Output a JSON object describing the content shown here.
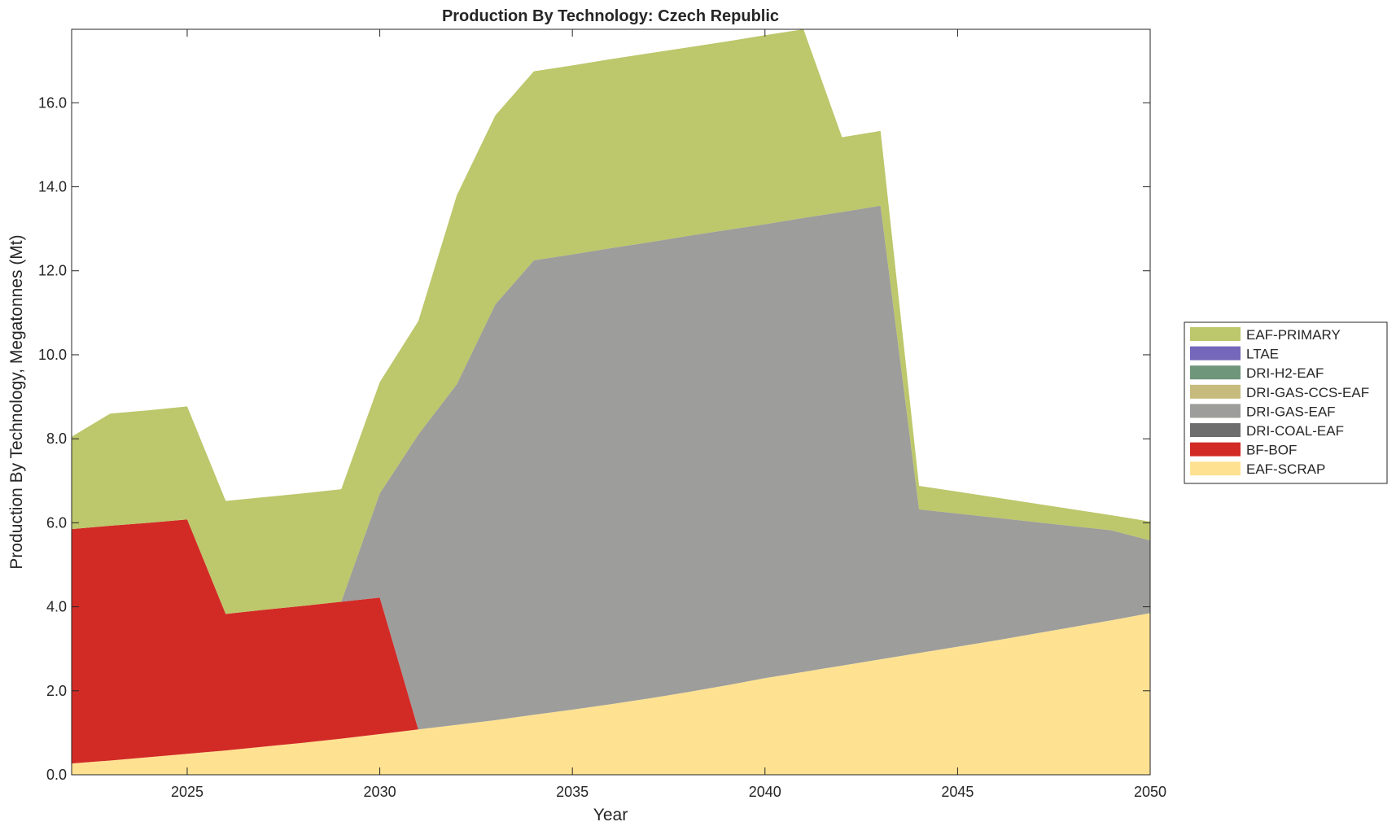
{
  "chart_data": {
    "type": "area",
    "stacked": true,
    "title": "Production By Technology: Czech Republic",
    "xlabel": "Year",
    "ylabel": "Production By Technology, Megatonnes (Mt)",
    "xlim": [
      2022,
      2050
    ],
    "ylim": [
      0,
      17.75
    ],
    "xticks": [
      2025,
      2030,
      2035,
      2040,
      2045,
      2050
    ],
    "yticks": [
      0,
      2,
      4,
      6,
      8,
      10,
      12,
      14,
      16
    ],
    "ytick_labels": [
      "0.0",
      "2.0",
      "4.0",
      "6.0",
      "8.0",
      "10.0",
      "12.0",
      "14.0",
      "16.0"
    ],
    "legend_position": "outside-right",
    "x": [
      2022,
      2023,
      2024,
      2025,
      2026,
      2027,
      2028,
      2029,
      2030,
      2031,
      2032,
      2033,
      2034,
      2035,
      2036,
      2037,
      2038,
      2039,
      2040,
      2041,
      2042,
      2043,
      2044,
      2045,
      2046,
      2047,
      2048,
      2049,
      2050
    ],
    "series": [
      {
        "name": "EAF-SCRAP",
        "color": "#fee292",
        "values": [
          0.27,
          0.34,
          0.42,
          0.5,
          0.58,
          0.67,
          0.76,
          0.86,
          0.97,
          1.08,
          1.19,
          1.3,
          1.43,
          1.55,
          1.68,
          1.82,
          1.97,
          2.13,
          2.3,
          2.45,
          2.6,
          2.75,
          2.9,
          3.05,
          3.2,
          3.36,
          3.52,
          3.68,
          3.85
        ]
      },
      {
        "name": "BF-BOF",
        "color": "#d22b26",
        "values": [
          5.58,
          5.59,
          5.58,
          5.58,
          3.25,
          3.26,
          3.26,
          3.26,
          3.25,
          0,
          0,
          0,
          0,
          0,
          0,
          0,
          0,
          0,
          0,
          0,
          0,
          0,
          0,
          0,
          0,
          0,
          0,
          0,
          0
        ]
      },
      {
        "name": "DRI-COAL-EAF",
        "color": "#6e6e6e",
        "values": [
          0,
          0,
          0,
          0,
          0,
          0,
          0,
          0,
          0,
          0,
          0,
          0,
          0,
          0,
          0,
          0,
          0,
          0,
          0,
          0,
          0,
          0,
          0,
          0,
          0,
          0,
          0,
          0,
          0
        ]
      },
      {
        "name": "DRI-GAS-EAF",
        "color": "#9d9d9b",
        "values": [
          0,
          0,
          0,
          0,
          0,
          0,
          0,
          0,
          2.48,
          7.02,
          8.11,
          9.9,
          10.82,
          10.84,
          10.86,
          10.86,
          10.86,
          10.84,
          10.81,
          10.81,
          10.8,
          10.8,
          3.42,
          3.17,
          2.92,
          2.66,
          2.4,
          2.14,
          1.73
        ]
      },
      {
        "name": "DRI-GAS-CCS-EAF",
        "color": "#c6bb7c",
        "values": [
          0,
          0,
          0,
          0,
          0,
          0,
          0,
          0,
          0,
          0,
          0,
          0,
          0,
          0,
          0,
          0,
          0,
          0,
          0,
          0,
          0,
          0,
          0,
          0,
          0,
          0,
          0,
          0,
          0
        ]
      },
      {
        "name": "DRI-H2-EAF",
        "color": "#6f967a",
        "values": [
          0,
          0,
          0,
          0,
          0,
          0,
          0,
          0,
          0,
          0,
          0,
          0,
          0,
          0,
          0,
          0,
          0,
          0,
          0,
          0,
          0,
          0,
          0,
          0,
          0,
          0,
          0,
          0,
          0
        ]
      },
      {
        "name": "LTAE",
        "color": "#7567b9",
        "values": [
          0,
          0,
          0,
          0,
          0,
          0,
          0,
          0,
          0,
          0,
          0,
          0,
          0,
          0,
          0,
          0,
          0,
          0,
          0,
          0,
          0,
          0,
          0,
          0,
          0,
          0,
          0,
          0,
          0
        ]
      },
      {
        "name": "EAF-PRIMARY",
        "color": "#bdc76b",
        "values": [
          2.2,
          2.67,
          2.68,
          2.69,
          2.69,
          2.68,
          2.68,
          2.68,
          2.65,
          2.7,
          4.5,
          4.5,
          4.5,
          4.5,
          4.5,
          4.5,
          4.49,
          4.49,
          4.5,
          4.49,
          1.78,
          1.78,
          0.56,
          0.52,
          0.48,
          0.44,
          0.4,
          0.36,
          0.45
        ]
      }
    ],
    "legend_order": [
      "EAF-PRIMARY",
      "LTAE",
      "DRI-H2-EAF",
      "DRI-GAS-CCS-EAF",
      "DRI-GAS-EAF",
      "DRI-COAL-EAF",
      "BF-BOF",
      "EAF-SCRAP"
    ]
  }
}
